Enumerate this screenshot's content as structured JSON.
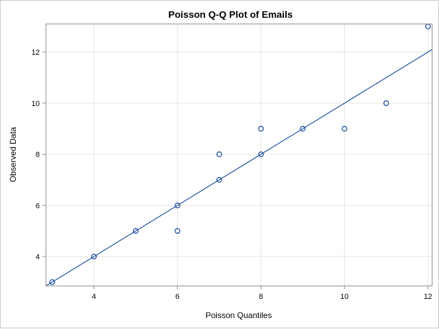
{
  "chart_data": {
    "type": "scatter",
    "title": "Poisson Q-Q Plot of Emails",
    "xlabel": "Poisson Quantiles",
    "ylabel": "Observed Data",
    "xlim": [
      2.85,
      12.1
    ],
    "ylim": [
      2.85,
      13.1
    ],
    "xticks": [
      4,
      6,
      8,
      10,
      12
    ],
    "yticks": [
      4,
      6,
      8,
      10,
      12
    ],
    "grid": true,
    "series": [
      {
        "points": [
          {
            "x": 3,
            "y": 3
          },
          {
            "x": 4,
            "y": 4
          },
          {
            "x": 5,
            "y": 5
          },
          {
            "x": 6,
            "y": 6
          },
          {
            "x": 6,
            "y": 5
          },
          {
            "x": 7,
            "y": 7
          },
          {
            "x": 7,
            "y": 8
          },
          {
            "x": 8,
            "y": 8
          },
          {
            "x": 8,
            "y": 9
          },
          {
            "x": 9,
            "y": 9
          },
          {
            "x": 10,
            "y": 9
          },
          {
            "x": 11,
            "y": 10
          },
          {
            "x": 12,
            "y": 13
          }
        ],
        "marker": "open-circle",
        "color": "#1f4f9c"
      }
    ],
    "reference_line": {
      "slope": 1,
      "intercept": 0,
      "color": "#1f4f9c"
    },
    "colors": {
      "grid": "#e4e4e4",
      "frame": "#8a8a8a",
      "text": "#000000"
    }
  }
}
